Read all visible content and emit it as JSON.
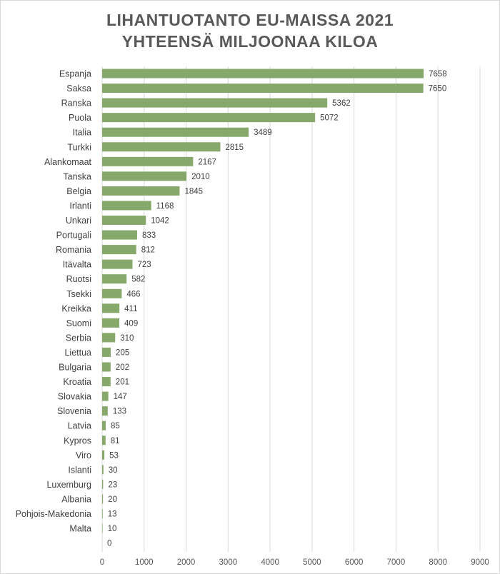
{
  "chart_data": {
    "type": "bar",
    "orientation": "horizontal",
    "title": "LIHANTUOTANTO EU-MAISSA 2021",
    "subtitle": "YHTEENSÄ MILJOONAA KILOA",
    "xlabel": "",
    "ylabel": "",
    "xlim": [
      0,
      9000
    ],
    "x_ticks": [
      0,
      1000,
      2000,
      3000,
      4000,
      5000,
      6000,
      7000,
      8000,
      9000
    ],
    "grid": true,
    "legend": "none",
    "bar_color": "#86a86a",
    "categories": [
      "Espanja",
      "Saksa",
      "Ranska",
      "Puola",
      "Italia",
      "Turkki",
      "Alankomaat",
      "Tanska",
      "Belgia",
      "Irlanti",
      "Unkari",
      "Portugali",
      "Romania",
      "Itävalta",
      "Ruotsi",
      "Tsekki",
      "Kreikka",
      "Suomi",
      "Serbia",
      "Liettua",
      "Bulgaria",
      "Kroatia",
      "Slovakia",
      "Slovenia",
      "Latvia",
      "Kypros",
      "Viro",
      "Islanti",
      "Luxemburg",
      "Albania",
      "Pohjois-Makedonia",
      "Malta",
      ""
    ],
    "values": [
      7658,
      7650,
      5362,
      5072,
      3489,
      2815,
      2167,
      2010,
      1845,
      1168,
      1042,
      833,
      812,
      723,
      582,
      466,
      411,
      409,
      310,
      205,
      202,
      201,
      147,
      133,
      85,
      81,
      53,
      30,
      23,
      20,
      13,
      10,
      0
    ]
  }
}
